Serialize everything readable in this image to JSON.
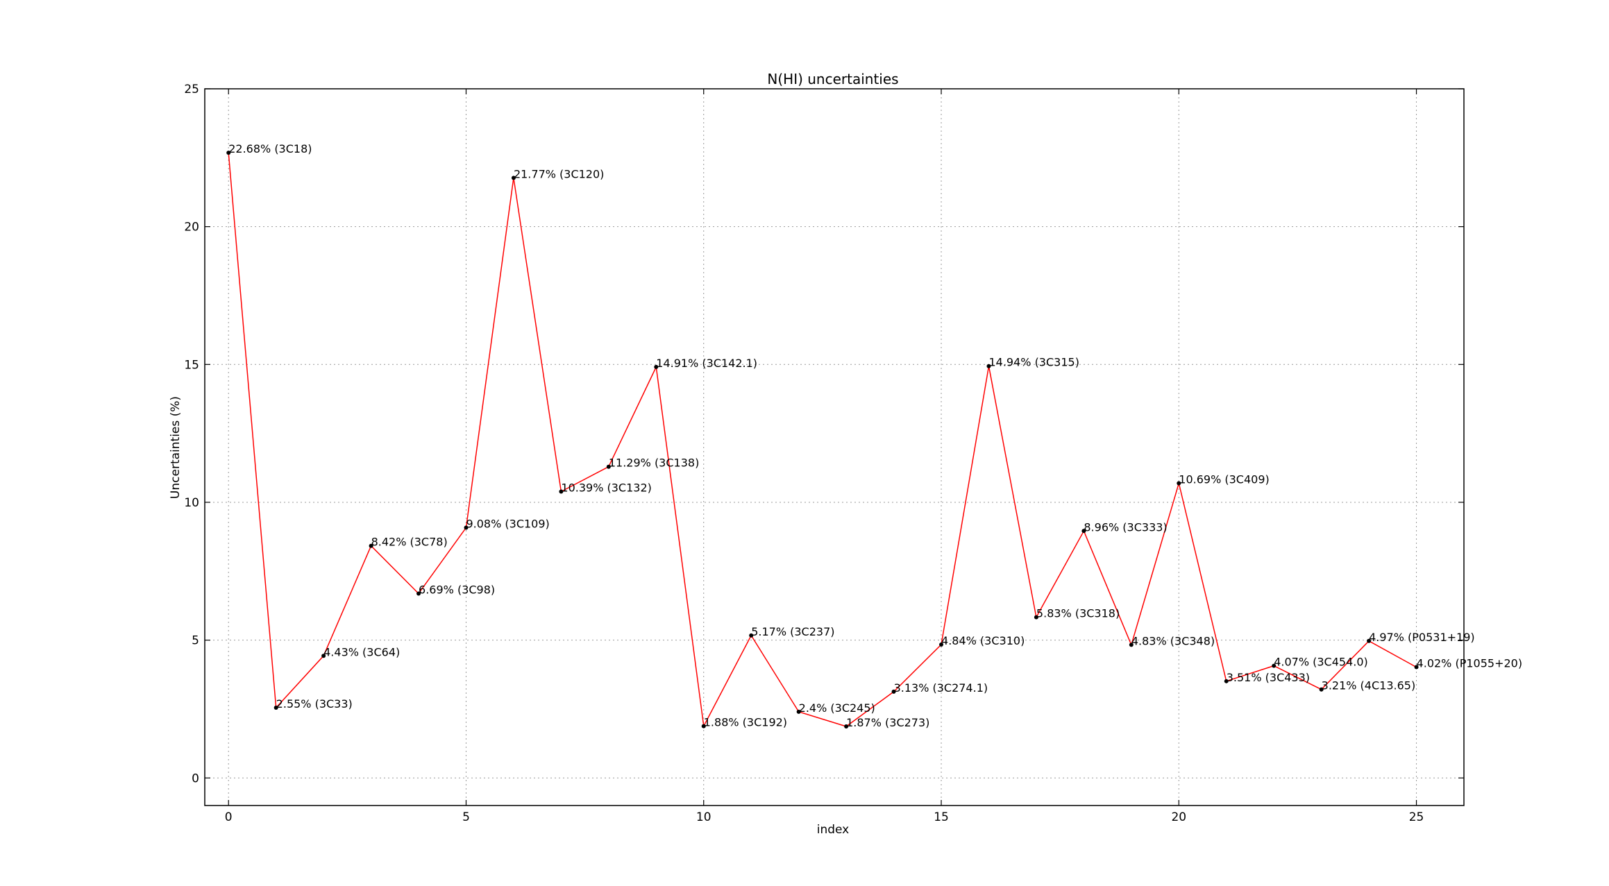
{
  "chart_data": {
    "type": "line",
    "title": "N(HI) uncertainties",
    "xlabel": "index",
    "ylabel": "Uncertainties (%)",
    "xlim": [
      -0.5,
      26
    ],
    "ylim": [
      -1,
      25
    ],
    "xticks": [
      0,
      5,
      10,
      15,
      20,
      25
    ],
    "yticks": [
      0,
      5,
      10,
      15,
      20,
      25
    ],
    "grid": true,
    "line_color": "#ff0000",
    "marker_color": "#000000",
    "series": [
      {
        "x": [
          0,
          1,
          2,
          3,
          4,
          5,
          6,
          7,
          8,
          9,
          10,
          11,
          12,
          13,
          14,
          15,
          16,
          17,
          18,
          19,
          20,
          21,
          22,
          23,
          24,
          25
        ],
        "values": [
          22.68,
          2.55,
          4.43,
          8.42,
          6.69,
          9.08,
          21.77,
          10.39,
          11.29,
          14.91,
          1.88,
          5.17,
          2.4,
          1.87,
          3.13,
          4.84,
          14.94,
          5.83,
          8.96,
          4.83,
          10.69,
          3.51,
          4.07,
          3.21,
          4.97,
          4.02
        ]
      }
    ],
    "annotations": [
      "22.68% (3C18)",
      "2.55% (3C33)",
      "4.43% (3C64)",
      "8.42% (3C78)",
      "6.69% (3C98)",
      "9.08% (3C109)",
      "21.77% (3C120)",
      "10.39% (3C132)",
      "11.29% (3C138)",
      "14.91% (3C142.1)",
      "1.88% (3C192)",
      "5.17% (3C237)",
      "2.4% (3C245)",
      "1.87% (3C273)",
      "3.13% (3C274.1)",
      "4.84% (3C310)",
      "14.94% (3C315)",
      "5.83% (3C318)",
      "8.96% (3C333)",
      "4.83% (3C348)",
      "10.69% (3C409)",
      "3.51% (3C433)",
      "4.07% (3C454.0)",
      "3.21% (4C13.65)",
      "4.97% (P0531+19)",
      "4.02% (P1055+20)"
    ]
  }
}
